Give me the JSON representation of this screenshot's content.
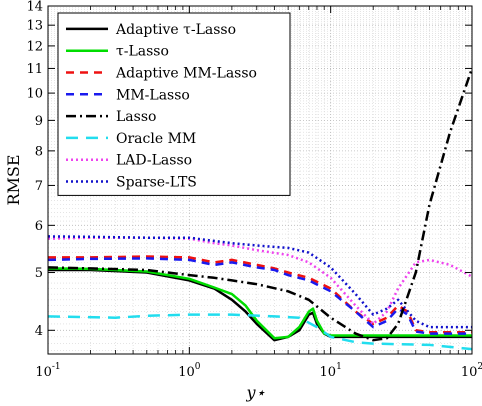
{
  "chart_data": {
    "type": "line",
    "xlabel": "y⋆",
    "ylabel": "RMSE",
    "xscale": "log",
    "yscale": "log",
    "xlim": [
      0.1,
      100
    ],
    "ylim": [
      3.65,
      14
    ],
    "grid": true,
    "minor_grid": true,
    "legend_position": "top-left",
    "x_ticks": [
      {
        "value": 0.1,
        "base": "10",
        "exp": "-1"
      },
      {
        "value": 1,
        "base": "10",
        "exp": "0"
      },
      {
        "value": 10,
        "base": "10",
        "exp": "1"
      },
      {
        "value": 100,
        "base": "10",
        "exp": "2"
      }
    ],
    "y_ticks": [
      {
        "value": 4,
        "label": "4"
      },
      {
        "value": 5,
        "label": "5"
      },
      {
        "value": 6,
        "label": "6"
      },
      {
        "value": 7,
        "label": "7"
      },
      {
        "value": 8,
        "label": "8"
      },
      {
        "value": 9,
        "label": "9"
      },
      {
        "value": 10,
        "label": "10"
      },
      {
        "value": 11,
        "label": "11"
      },
      {
        "value": 12,
        "label": "12"
      },
      {
        "value": 13,
        "label": "13"
      },
      {
        "value": 14,
        "label": "14"
      }
    ],
    "series": [
      {
        "name": "Adaptive τ-Lasso",
        "color": "#000000",
        "dash": "solid",
        "width": 2.5,
        "points": [
          [
            0.1,
            5.05
          ],
          [
            0.2,
            5.05
          ],
          [
            0.5,
            5.0
          ],
          [
            1,
            4.85
          ],
          [
            1.5,
            4.7
          ],
          [
            2,
            4.5
          ],
          [
            2.5,
            4.3
          ],
          [
            3,
            4.1
          ],
          [
            4,
            3.85
          ],
          [
            5,
            3.9
          ],
          [
            6,
            4.0
          ],
          [
            7,
            4.25
          ],
          [
            7.5,
            4.28
          ],
          [
            8,
            4.1
          ],
          [
            9,
            3.95
          ],
          [
            10,
            3.9
          ],
          [
            20,
            3.9
          ],
          [
            50,
            3.9
          ],
          [
            100,
            3.9
          ]
        ]
      },
      {
        "name": "τ-Lasso",
        "color": "#00dd00",
        "dash": "solid",
        "width": 2.5,
        "points": [
          [
            0.1,
            5.08
          ],
          [
            0.2,
            5.07
          ],
          [
            0.5,
            5.02
          ],
          [
            1,
            4.88
          ],
          [
            1.5,
            4.72
          ],
          [
            2,
            4.6
          ],
          [
            2.5,
            4.4
          ],
          [
            3,
            4.15
          ],
          [
            4,
            3.88
          ],
          [
            5,
            3.9
          ],
          [
            6,
            4.05
          ],
          [
            7,
            4.3
          ],
          [
            7.5,
            4.35
          ],
          [
            8,
            4.15
          ],
          [
            9,
            3.95
          ],
          [
            10,
            3.92
          ],
          [
            20,
            3.92
          ],
          [
            50,
            3.92
          ],
          [
            100,
            3.92
          ]
        ]
      },
      {
        "name": "Adaptive MM-Lasso",
        "color": "#ee1111",
        "dash": "8,6",
        "width": 2.5,
        "points": [
          [
            0.1,
            5.3
          ],
          [
            0.2,
            5.3
          ],
          [
            0.5,
            5.32
          ],
          [
            1,
            5.3
          ],
          [
            1.5,
            5.2
          ],
          [
            2,
            5.25
          ],
          [
            3,
            5.15
          ],
          [
            4,
            5.08
          ],
          [
            5,
            5.0
          ],
          [
            7,
            4.9
          ],
          [
            10,
            4.7
          ],
          [
            15,
            4.3
          ],
          [
            20,
            4.1
          ],
          [
            25,
            4.2
          ],
          [
            30,
            4.4
          ],
          [
            35,
            4.3
          ],
          [
            40,
            4.0
          ],
          [
            50,
            3.97
          ],
          [
            100,
            3.97
          ]
        ]
      },
      {
        "name": "MM-Lasso",
        "color": "#1a1aee",
        "dash": "8,6",
        "width": 2.5,
        "points": [
          [
            0.1,
            5.25
          ],
          [
            0.2,
            5.27
          ],
          [
            0.5,
            5.28
          ],
          [
            1,
            5.25
          ],
          [
            1.5,
            5.15
          ],
          [
            2,
            5.2
          ],
          [
            3,
            5.1
          ],
          [
            4,
            5.05
          ],
          [
            5,
            4.95
          ],
          [
            7,
            4.85
          ],
          [
            10,
            4.65
          ],
          [
            15,
            4.3
          ],
          [
            20,
            4.05
          ],
          [
            25,
            4.15
          ],
          [
            30,
            4.35
          ],
          [
            35,
            4.25
          ],
          [
            40,
            3.98
          ],
          [
            50,
            3.95
          ],
          [
            100,
            3.95
          ]
        ]
      },
      {
        "name": "Lasso",
        "color": "#000000",
        "dash": "10,4,2,4",
        "width": 2.5,
        "points": [
          [
            0.1,
            5.1
          ],
          [
            0.2,
            5.08
          ],
          [
            0.5,
            5.05
          ],
          [
            1,
            4.95
          ],
          [
            1.5,
            4.9
          ],
          [
            2,
            4.85
          ],
          [
            3,
            4.78
          ],
          [
            5,
            4.65
          ],
          [
            7,
            4.5
          ],
          [
            10,
            4.2
          ],
          [
            15,
            3.95
          ],
          [
            20,
            3.85
          ],
          [
            25,
            3.88
          ],
          [
            30,
            4.1
          ],
          [
            40,
            5.0
          ],
          [
            50,
            6.5
          ],
          [
            70,
            8.6
          ],
          [
            100,
            11.0
          ]
        ]
      },
      {
        "name": "Oracle MM",
        "color": "#22ddee",
        "dash": "12,8",
        "width": 2.5,
        "points": [
          [
            0.1,
            4.22
          ],
          [
            0.3,
            4.2
          ],
          [
            0.5,
            4.23
          ],
          [
            1,
            4.25
          ],
          [
            2,
            4.25
          ],
          [
            4,
            4.22
          ],
          [
            6,
            4.2
          ],
          [
            8,
            4.05
          ],
          [
            10,
            3.9
          ],
          [
            15,
            3.82
          ],
          [
            20,
            3.8
          ],
          [
            50,
            3.78
          ],
          [
            100,
            3.72
          ]
        ]
      },
      {
        "name": "LAD-Lasso",
        "color": "#ee44ee",
        "dash": "2,3",
        "width": 2.5,
        "points": [
          [
            0.1,
            5.7
          ],
          [
            0.2,
            5.72
          ],
          [
            0.5,
            5.72
          ],
          [
            1,
            5.7
          ],
          [
            1.5,
            5.6
          ],
          [
            2,
            5.55
          ],
          [
            3,
            5.45
          ],
          [
            5,
            5.35
          ],
          [
            7,
            5.2
          ],
          [
            10,
            4.9
          ],
          [
            15,
            4.4
          ],
          [
            20,
            4.1
          ],
          [
            25,
            4.3
          ],
          [
            30,
            4.7
          ],
          [
            40,
            5.2
          ],
          [
            50,
            5.25
          ],
          [
            70,
            5.15
          ],
          [
            100,
            4.92
          ]
        ]
      },
      {
        "name": "Sparse-LTS",
        "color": "#1111cc",
        "dash": "2,3",
        "width": 2.5,
        "points": [
          [
            0.1,
            5.75
          ],
          [
            0.2,
            5.74
          ],
          [
            0.5,
            5.72
          ],
          [
            1,
            5.72
          ],
          [
            1.5,
            5.65
          ],
          [
            2,
            5.6
          ],
          [
            3,
            5.55
          ],
          [
            5,
            5.5
          ],
          [
            7,
            5.4
          ],
          [
            10,
            5.1
          ],
          [
            15,
            4.6
          ],
          [
            20,
            4.25
          ],
          [
            25,
            4.35
          ],
          [
            30,
            4.5
          ],
          [
            40,
            4.15
          ],
          [
            50,
            4.05
          ],
          [
            100,
            4.05
          ]
        ]
      }
    ]
  }
}
